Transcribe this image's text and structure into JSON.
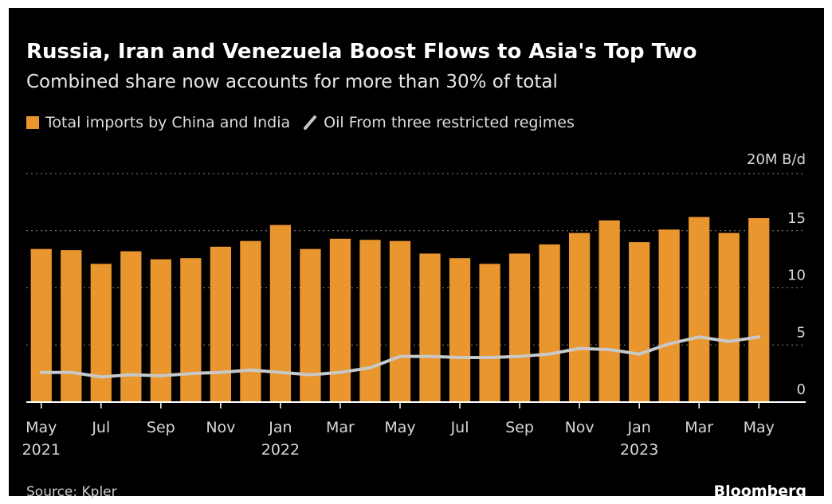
{
  "title": "Russia, Iran and Venezuela Boost Flows to Asia's Top Two",
  "subtitle": "Combined share now accounts for more than 30% of total",
  "legend": {
    "bars": "Total imports by China and India",
    "line": "Oil From three restricted regimes"
  },
  "source": "Source: Kpler",
  "brand": "Bloomberg",
  "colors": {
    "bar": "#e8962d",
    "line": "#c8c8c8",
    "background": "#000000"
  },
  "chart_data": {
    "type": "bar",
    "ylabel": "20M B/d",
    "ylim": [
      0,
      20
    ],
    "yticks": [
      "20M B/d",
      "15",
      "10",
      "5",
      "0"
    ],
    "ytick_values": [
      20,
      15,
      10,
      5,
      0
    ],
    "categories": [
      "2021-05",
      "2021-06",
      "2021-07",
      "2021-08",
      "2021-09",
      "2021-10",
      "2021-11",
      "2021-12",
      "2022-01",
      "2022-02",
      "2022-03",
      "2022-04",
      "2022-05",
      "2022-06",
      "2022-07",
      "2022-08",
      "2022-09",
      "2022-10",
      "2022-11",
      "2022-12",
      "2023-01",
      "2023-02",
      "2023-03",
      "2023-04",
      "2023-05"
    ],
    "xtick_labels": [
      {
        "index": 0,
        "label": "May",
        "year": "2021"
      },
      {
        "index": 2,
        "label": "Jul",
        "year": ""
      },
      {
        "index": 4,
        "label": "Sep",
        "year": ""
      },
      {
        "index": 6,
        "label": "Nov",
        "year": ""
      },
      {
        "index": 8,
        "label": "Jan",
        "year": "2022"
      },
      {
        "index": 10,
        "label": "Mar",
        "year": ""
      },
      {
        "index": 12,
        "label": "May",
        "year": ""
      },
      {
        "index": 14,
        "label": "Jul",
        "year": ""
      },
      {
        "index": 16,
        "label": "Sep",
        "year": ""
      },
      {
        "index": 18,
        "label": "Nov",
        "year": ""
      },
      {
        "index": 20,
        "label": "Jan",
        "year": "2023"
      },
      {
        "index": 22,
        "label": "Mar",
        "year": ""
      },
      {
        "index": 24,
        "label": "May",
        "year": ""
      }
    ],
    "series": [
      {
        "name": "Total imports by China and India",
        "type": "bar",
        "values": [
          13.4,
          13.3,
          12.1,
          13.2,
          12.5,
          12.6,
          13.6,
          14.1,
          15.5,
          13.4,
          14.3,
          14.2,
          14.1,
          13.0,
          12.6,
          12.1,
          13.0,
          13.8,
          14.8,
          15.9,
          14.0,
          15.1,
          16.2,
          14.8,
          16.1
        ]
      },
      {
        "name": "Oil From three restricted regimes",
        "type": "line",
        "values": [
          2.6,
          2.6,
          2.2,
          2.4,
          2.3,
          2.5,
          2.6,
          2.8,
          2.6,
          2.4,
          2.6,
          3.0,
          4.0,
          4.0,
          3.9,
          3.9,
          4.0,
          4.2,
          4.7,
          4.6,
          4.2,
          5.1,
          5.7,
          5.3,
          5.7
        ]
      }
    ]
  }
}
